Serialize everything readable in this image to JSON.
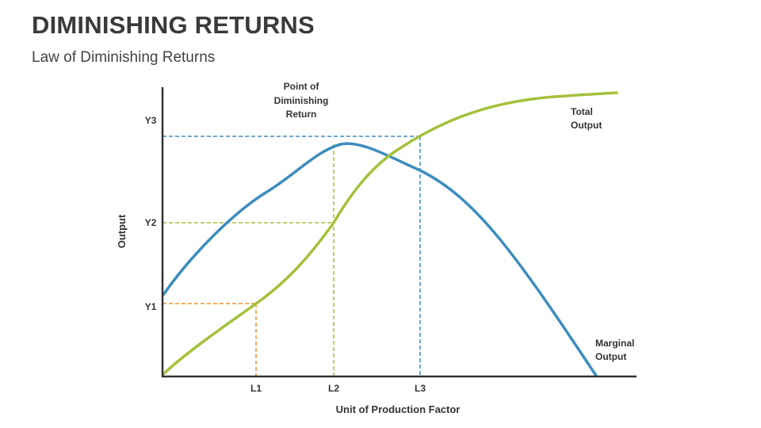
{
  "header": {
    "title": "DIMINISHING RETURNS",
    "subtitle": "Law of Diminishing Returns"
  },
  "chart_data": {
    "type": "line",
    "xlabel": "Unit of Production Factor",
    "ylabel": "Output",
    "x_ticks": [
      "L1",
      "L2",
      "L3"
    ],
    "y_ticks": [
      "Y1",
      "Y2",
      "Y3"
    ],
    "series": [
      {
        "name": "Total Output",
        "color": "#a3c13a"
      },
      {
        "name": "Marginal Output",
        "color": "#3d8dbd"
      }
    ],
    "annotations": {
      "peak": "Point of Diminishing Return"
    },
    "guide_colors": {
      "L1": "#f0902a",
      "L2": "#a3c13a",
      "L3": "#3d8dbd"
    }
  },
  "labels": {
    "peak_line1": "Point of",
    "peak_line2": "Diminishing",
    "peak_line3": "Return",
    "total_line1": "Total",
    "total_line2": "Output",
    "marginal_line1": "Marginal",
    "marginal_line2": "Output"
  }
}
